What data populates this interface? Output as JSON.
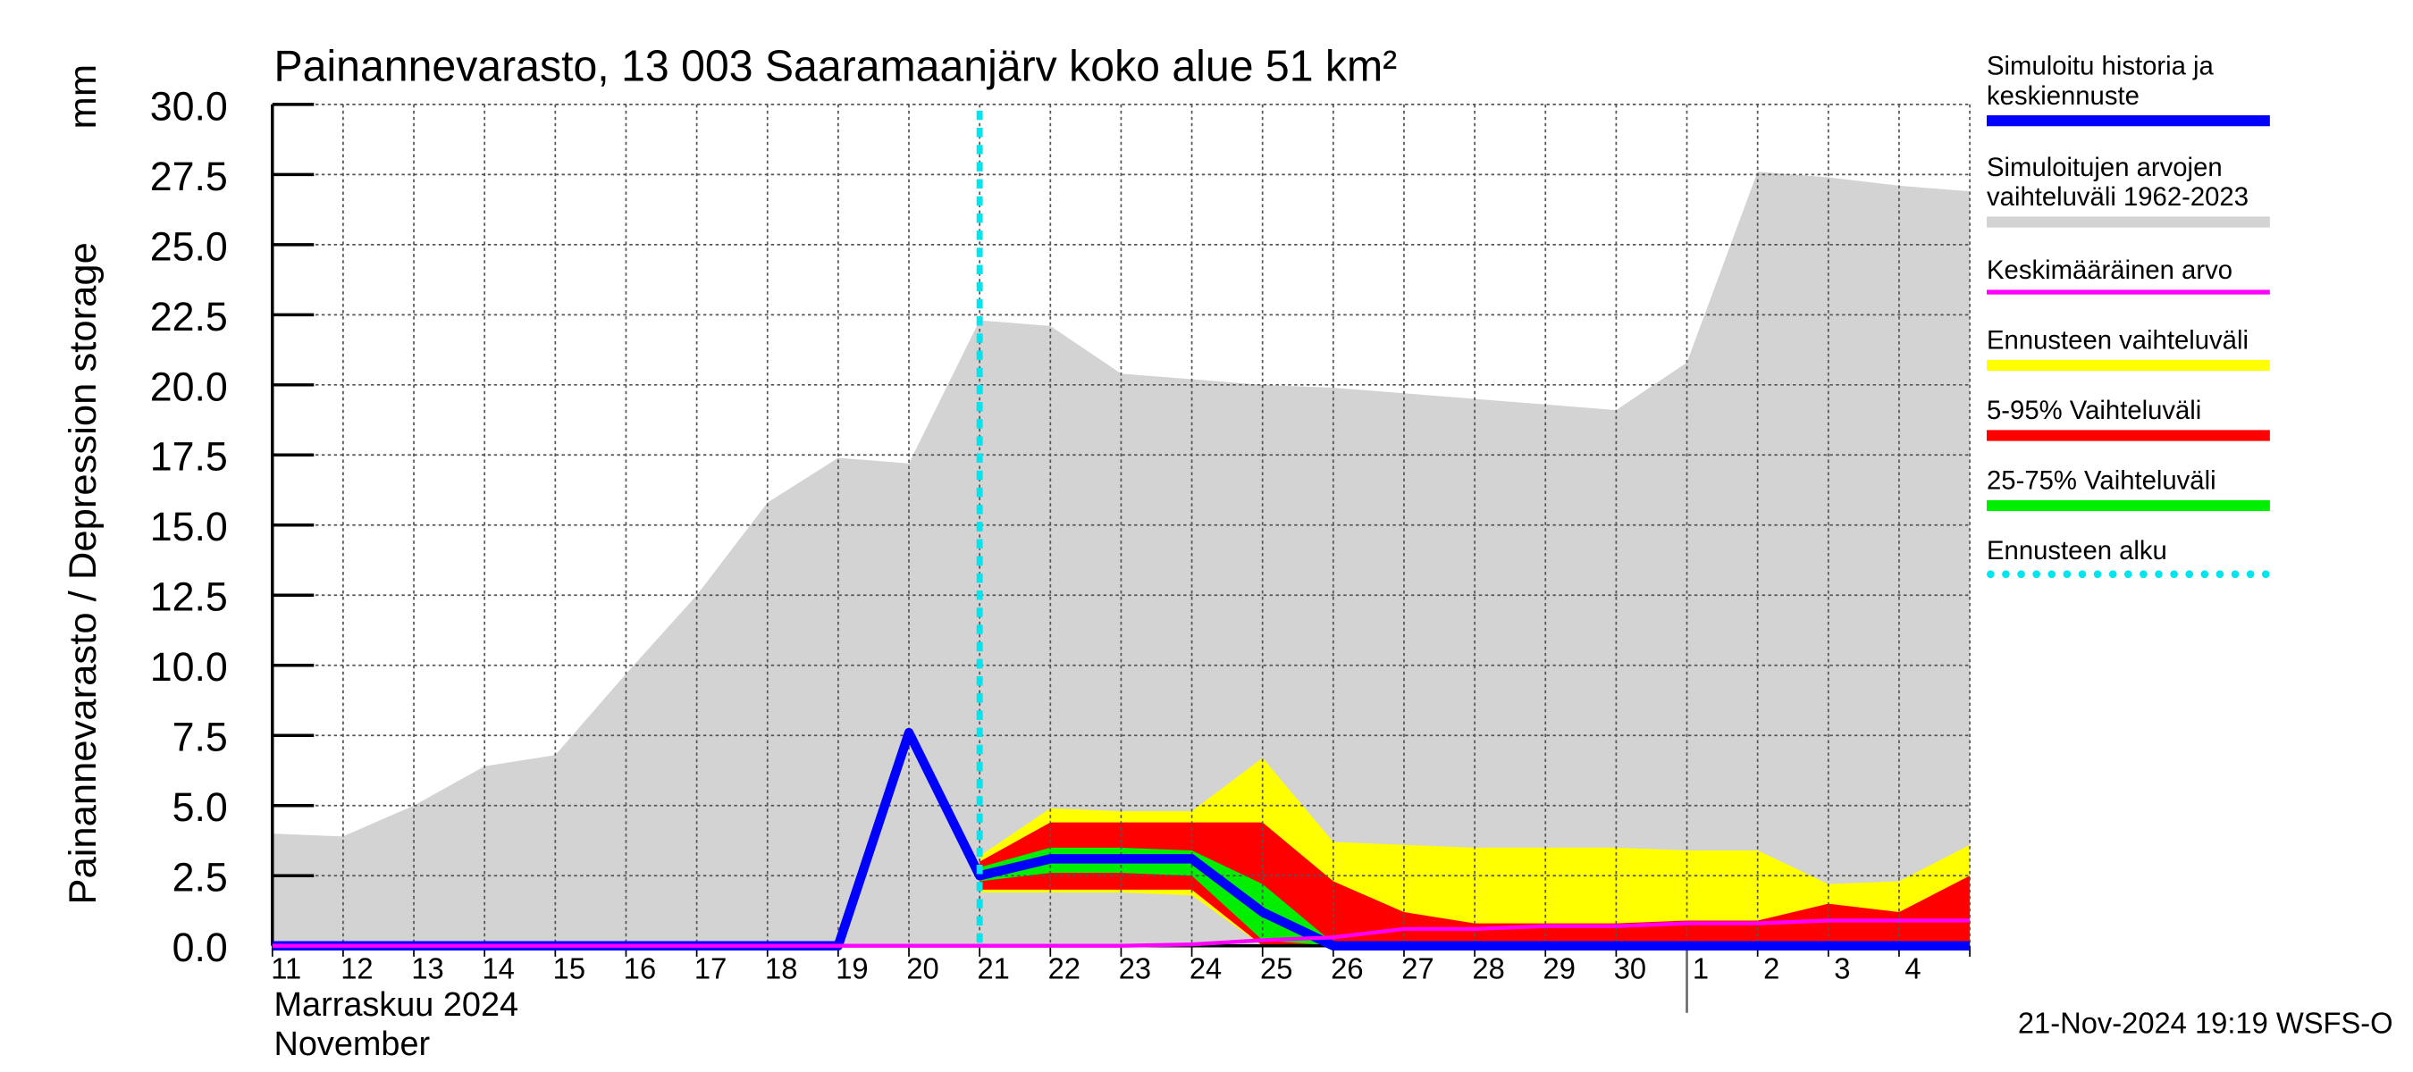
{
  "chart_data": {
    "type": "range-forecast",
    "title": "Painannevarasto, 13 003 Saaramaanjärv koko alue 51 km²",
    "ylabel": "Painannevarasto / Depression storage",
    "yunit": "mm",
    "xlabel_fi": "Marraskuu 2024",
    "xlabel_en": "November",
    "footer": "21-Nov-2024 19:19 WSFS-O",
    "categories": [
      "11",
      "12",
      "13",
      "14",
      "15",
      "16",
      "17",
      "18",
      "19",
      "20",
      "21",
      "22",
      "23",
      "24",
      "25",
      "26",
      "27",
      "28",
      "29",
      "30",
      "1",
      "2",
      "3",
      "4",
      null
    ],
    "month_start": "1",
    "ylim": [
      0,
      30
    ],
    "yticks": [
      {
        "value": 0,
        "label": "0.0"
      },
      {
        "value": 2.5,
        "label": "2.5"
      },
      {
        "value": 5,
        "label": "5.0"
      },
      {
        "value": 7.5,
        "label": "7.5"
      },
      {
        "value": 10,
        "label": "10.0"
      },
      {
        "value": 12.5,
        "label": "12.5"
      },
      {
        "value": 15,
        "label": "15.0"
      },
      {
        "value": 17.5,
        "label": "17.5"
      },
      {
        "value": 20,
        "label": "20.0"
      },
      {
        "value": 22.5,
        "label": "22.5"
      },
      {
        "value": 25,
        "label": "25.0"
      },
      {
        "value": 27.5,
        "label": "27.5"
      },
      {
        "value": 30,
        "label": "30.0"
      }
    ],
    "grid": true,
    "series": [
      {
        "name": "Simuloitu historia ja keskiennuste",
        "color": "#0000ff",
        "style": "line",
        "values": [
          0,
          0,
          0,
          0,
          0,
          0,
          0,
          0,
          0,
          7.6,
          2.5,
          3.1,
          3.1,
          3.1,
          1.2,
          0,
          0,
          0,
          0,
          0,
          0,
          0,
          0,
          0,
          0
        ]
      },
      {
        "name": "Simuloitujen arvojen vaihteluväli 1962-2023",
        "color": "#d3d3d3",
        "style": "band",
        "values": [
          4.0,
          3.9,
          5.0,
          6.4,
          6.8,
          9.7,
          12.5,
          15.8,
          17.4,
          17.2,
          22.3,
          22.1,
          20.4,
          20.2,
          20.0,
          19.9,
          19.7,
          19.5,
          19.3,
          19.1,
          20.8,
          27.6,
          27.4,
          27.1,
          26.9
        ],
        "lower": [
          0,
          0,
          0,
          0,
          0,
          0,
          0,
          0,
          0,
          0,
          0,
          0,
          0,
          0,
          0,
          0,
          0,
          0,
          0,
          0,
          0,
          0,
          0,
          0,
          0
        ]
      },
      {
        "name": "Keskimääräinen arvo",
        "color": "#ff00ff",
        "style": "thin",
        "values": [
          0,
          0,
          0,
          0,
          0,
          0,
          0,
          0,
          0,
          0,
          0,
          0,
          0,
          0.05,
          0.2,
          0.3,
          0.6,
          0.6,
          0.7,
          0.7,
          0.8,
          0.8,
          0.9,
          0.9,
          0.9
        ]
      },
      {
        "name": "Ennusteen vaihteluväli",
        "color": "#ffff00",
        "style": "band",
        "values": [
          null,
          null,
          null,
          null,
          null,
          null,
          null,
          null,
          null,
          null,
          3.2,
          4.9,
          4.8,
          4.8,
          6.7,
          3.7,
          3.6,
          3.5,
          3.5,
          3.5,
          3.4,
          3.4,
          2.2,
          2.3,
          3.6
        ],
        "lower": [
          null,
          null,
          null,
          null,
          null,
          null,
          null,
          null,
          null,
          null,
          1.9,
          1.9,
          1.9,
          1.8,
          0,
          0,
          0,
          0,
          0,
          0,
          0,
          0,
          0,
          0,
          0
        ]
      },
      {
        "name": "5-95% Vaihteluväli",
        "color": "#ff0000",
        "style": "band",
        "values": [
          null,
          null,
          null,
          null,
          null,
          null,
          null,
          null,
          null,
          null,
          3.0,
          4.4,
          4.4,
          4.4,
          4.4,
          2.3,
          1.2,
          0.8,
          0.8,
          0.8,
          0.9,
          0.9,
          1.5,
          1.2,
          2.5
        ],
        "lower": [
          null,
          null,
          null,
          null,
          null,
          null,
          null,
          null,
          null,
          null,
          2.0,
          2.0,
          2.0,
          2.0,
          0,
          0,
          0,
          0,
          0,
          0,
          0,
          0,
          0,
          0,
          0
        ]
      },
      {
        "name": "25-75% Vaihteluväli",
        "color": "#00ee00",
        "style": "band",
        "values": [
          null,
          null,
          null,
          null,
          null,
          null,
          null,
          null,
          null,
          null,
          2.8,
          3.5,
          3.5,
          3.4,
          2.2,
          0.1,
          0.1,
          0.1,
          0.1,
          0.1,
          0.1,
          0.1,
          0.1,
          0.1,
          0.1
        ],
        "lower": [
          null,
          null,
          null,
          null,
          null,
          null,
          null,
          null,
          null,
          null,
          2.3,
          2.6,
          2.6,
          2.5,
          0.2,
          0,
          0,
          0,
          0,
          0,
          0,
          0,
          0,
          0,
          0
        ]
      }
    ],
    "forecast_start": {
      "name": "Ennusteen alku",
      "color": "#00e5ee",
      "category": "21"
    }
  }
}
